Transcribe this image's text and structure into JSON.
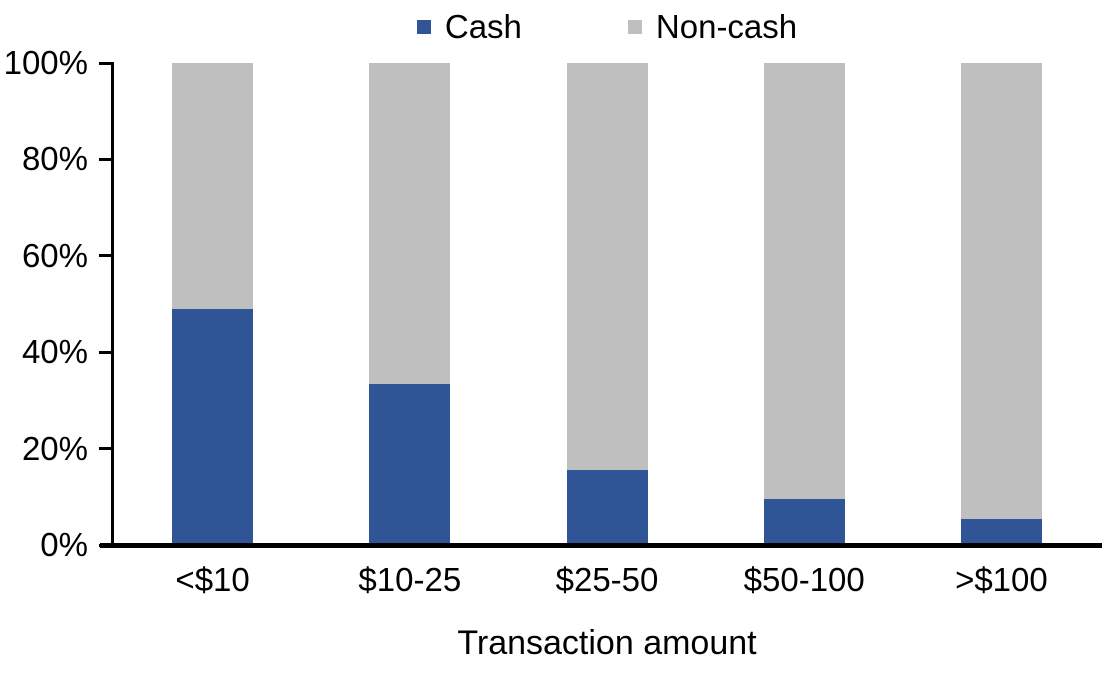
{
  "chart_data": {
    "type": "bar",
    "stacked": true,
    "title": "",
    "xlabel": "Transaction amount",
    "ylabel": "",
    "categories": [
      "<$10",
      "$10-25",
      "$25-50",
      "$50-100",
      ">$100"
    ],
    "series": [
      {
        "name": "Cash",
        "color": "#2F5597",
        "values": [
          49,
          33.5,
          15.5,
          9.5,
          5.5
        ]
      },
      {
        "name": "Non-cash",
        "color": "#BFBFBF",
        "values": [
          51,
          66.5,
          84.5,
          90.5,
          94.5
        ]
      }
    ],
    "ylim": [
      0,
      100
    ],
    "ytick_labels": [
      "0%",
      "20%",
      "40%",
      "60%",
      "80%",
      "100%"
    ],
    "grid": false,
    "legend_position": "top-center",
    "axis_color": "#000000",
    "background_color": "#FFFFFF"
  }
}
